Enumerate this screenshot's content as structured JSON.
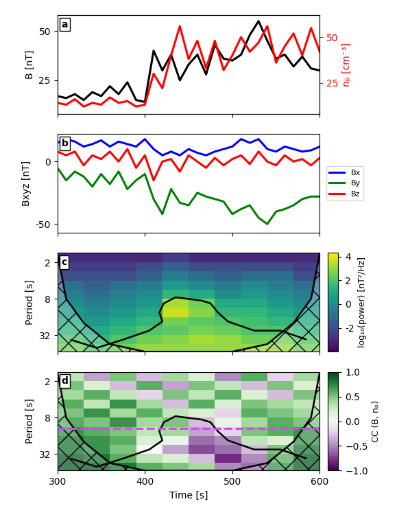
{
  "chart_data": [
    {
      "type": "line",
      "title": "a",
      "x": [
        300,
        310,
        320,
        330,
        340,
        350,
        360,
        370,
        380,
        390,
        400,
        410,
        420,
        430,
        440,
        450,
        460,
        470,
        480,
        490,
        500,
        510,
        520,
        530,
        540,
        550,
        560,
        570,
        580,
        590,
        600
      ],
      "series": [
        {
          "name": "B",
          "color": "#000000",
          "values": [
            17,
            16,
            18,
            15,
            19,
            17,
            22,
            18,
            24,
            15,
            14,
            40,
            30,
            38,
            25,
            33,
            38,
            28,
            43,
            36,
            35,
            38,
            48,
            55,
            45,
            36,
            38,
            32,
            37,
            31,
            30
          ]
        },
        {
          "name": "nₚ",
          "color": "#ff0000",
          "axis": "y2",
          "values": [
            14,
            13,
            16,
            12,
            14,
            13,
            17,
            14,
            15,
            12,
            13,
            30,
            22,
            40,
            56,
            38,
            48,
            33,
            48,
            32,
            40,
            50,
            42,
            47,
            56,
            36,
            45,
            52,
            40,
            55,
            42
          ]
        }
      ],
      "ylabel": "B [nT]",
      "y2label": "nₚ [cm⁻³]",
      "xlim": [
        300,
        600
      ],
      "xticks": [
        300,
        400,
        500,
        600
      ],
      "ylim": [
        8,
        58
      ],
      "yticks": [
        25,
        50
      ],
      "y2lim": [
        8,
        62
      ],
      "y2ticks": [
        25,
        50
      ],
      "tick_labels": "y"
    },
    {
      "type": "line",
      "title": "b",
      "x": [
        300,
        310,
        320,
        330,
        340,
        350,
        360,
        370,
        380,
        390,
        400,
        410,
        420,
        430,
        440,
        450,
        460,
        470,
        480,
        490,
        500,
        510,
        520,
        530,
        540,
        550,
        560,
        570,
        580,
        590,
        600
      ],
      "series": [
        {
          "name": "Bx",
          "color": "#0000ff",
          "values": [
            15,
            18,
            16,
            12,
            14,
            17,
            12,
            16,
            14,
            12,
            18,
            10,
            5,
            8,
            5,
            10,
            7,
            5,
            8,
            10,
            12,
            18,
            15,
            18,
            10,
            8,
            12,
            10,
            8,
            9,
            12
          ]
        },
        {
          "name": "By",
          "color": "#008000",
          "values": [
            -5,
            -15,
            -8,
            -12,
            -20,
            -10,
            -18,
            -8,
            -22,
            -15,
            -10,
            -30,
            -42,
            -22,
            -33,
            -35,
            -25,
            -28,
            -30,
            -32,
            -42,
            -38,
            -35,
            -45,
            -50,
            -40,
            -38,
            -35,
            -30,
            -28,
            -28
          ]
        },
        {
          "name": "Bz",
          "color": "#ff0000",
          "values": [
            8,
            5,
            8,
            -3,
            5,
            2,
            8,
            0,
            10,
            -5,
            5,
            -15,
            0,
            2,
            -8,
            5,
            0,
            -5,
            3,
            -3,
            2,
            5,
            -2,
            8,
            0,
            -3,
            5,
            0,
            2,
            -3,
            3
          ]
        }
      ],
      "ylabel": "Bxyz [nT]",
      "xlim": [
        300,
        600
      ],
      "xticks": [
        300,
        400,
        500,
        600
      ],
      "ylim": [
        -57,
        22
      ],
      "yticks": [
        -50,
        0
      ],
      "legend": "center left",
      "tick_labels": "y"
    },
    {
      "type": "heatmap",
      "title": "c",
      "color": "viridis",
      "log": "y",
      "x_edges": [
        300,
        330,
        360,
        390,
        420,
        450,
        480,
        510,
        540,
        570,
        600
      ],
      "y_edges": [
        1.4,
        2,
        2.8,
        4,
        5.7,
        8,
        11.3,
        16,
        22.6,
        32,
        45,
        60
      ],
      "cells": [
        [
          -3,
          -3,
          -3,
          -3,
          -2.5,
          -3,
          -3,
          -3,
          -3,
          -3
        ],
        [
          -2.5,
          -2.5,
          -2.5,
          -2,
          -1.5,
          -2,
          -2,
          -2,
          -2,
          -2.5
        ],
        [
          -2,
          -2,
          -2,
          -1.5,
          -0.5,
          -1,
          -1.5,
          -1,
          -1,
          -2
        ],
        [
          -1,
          -1.5,
          -1,
          -0.5,
          0.5,
          0,
          -0.5,
          0,
          -0.5,
          -1
        ],
        [
          -0.5,
          -1,
          -0.5,
          0,
          1.5,
          1,
          0,
          0.5,
          0,
          -0.5
        ],
        [
          0,
          -0.5,
          0,
          0.5,
          3.2,
          2.5,
          1,
          1,
          0.5,
          0
        ],
        [
          0.5,
          0,
          0.5,
          1,
          3.6,
          2.8,
          1.5,
          1.5,
          1,
          0.5
        ],
        [
          1,
          0.5,
          1,
          1.5,
          2.5,
          2.2,
          2,
          1.8,
          1.5,
          1
        ],
        [
          1.5,
          1,
          1.5,
          2,
          2.2,
          2.6,
          2.4,
          2,
          2,
          1.5
        ],
        [
          2,
          1.5,
          2,
          2.5,
          2.8,
          3.2,
          3,
          2.5,
          2.5,
          2
        ],
        [
          2.5,
          2,
          2.5,
          3,
          3,
          3,
          3,
          3,
          3,
          2.5
        ]
      ],
      "contour_level": 2,
      "coi": {
        "x": [
          300,
          310,
          330,
          360,
          400,
          450,
          500,
          540,
          570,
          590,
          600
        ],
        "period": [
          1.4,
          8,
          20,
          45,
          60,
          60,
          60,
          45,
          20,
          8,
          1.4
        ]
      },
      "ylabel": "Period [s]",
      "xlim": [
        300,
        600
      ],
      "xticks": [
        300,
        400,
        500,
        600
      ],
      "ylim": [
        60,
        1.4
      ],
      "yticks": [
        2,
        8,
        32
      ],
      "colorbar_range": [
        -4,
        4.3
      ],
      "colorbar_ticks": [
        -2,
        0,
        2,
        4
      ],
      "colorbar_label": "log₁₀(power) [nT²/Hz]",
      "tick_labels": "y"
    },
    {
      "type": "heatmap",
      "title": "d",
      "color": "PRGn",
      "log": "y",
      "x_edges": [
        300,
        330,
        360,
        390,
        420,
        450,
        480,
        510,
        540,
        570,
        600
      ],
      "y_edges": [
        1.4,
        2,
        2.8,
        4,
        5.7,
        8,
        11.3,
        16,
        22.6,
        32,
        45,
        60
      ],
      "cells": [
        [
          0.3,
          -0.4,
          0.5,
          -0.3,
          0.4,
          0.2,
          -0.5,
          0.6,
          -0.2,
          0.4
        ],
        [
          0.5,
          0.2,
          -0.3,
          0.6,
          -0.4,
          0.5,
          0.3,
          -0.3,
          0.5,
          0.2
        ],
        [
          0.4,
          0.6,
          0.3,
          -0.2,
          0.5,
          0.3,
          0.6,
          0.2,
          -0.3,
          0.5
        ],
        [
          0.6,
          0.3,
          0.7,
          0.4,
          -0.3,
          0.6,
          0.2,
          0.5,
          0.4,
          0.3
        ],
        [
          0.5,
          0.7,
          0.4,
          0.6,
          0.3,
          0.2,
          -0.2,
          0.6,
          0.5,
          0.4
        ],
        [
          0.6,
          0.5,
          0.7,
          0.4,
          0.5,
          -0.3,
          0.1,
          0.4,
          0.6,
          0.5
        ],
        [
          0.7,
          0.6,
          0.5,
          0.3,
          0.4,
          -0.4,
          -0.2,
          0.5,
          0.6,
          0.7
        ],
        [
          0.8,
          0.7,
          0.6,
          0.2,
          0.1,
          -0.6,
          -0.5,
          0.3,
          0.2,
          0.7
        ],
        [
          0.8,
          0.7,
          0.5,
          0.0,
          -0.4,
          -0.7,
          -0.6,
          -0.3,
          0.5,
          0.8
        ],
        [
          0.9,
          0.8,
          0.6,
          0.3,
          0.2,
          -0.3,
          -0.8,
          -0.5,
          0.6,
          0.9
        ],
        [
          0.9,
          0.9,
          0.8,
          0.6,
          0.5,
          0.4,
          -0.5,
          -0.6,
          0.7,
          0.9
        ]
      ],
      "contour_level": 2,
      "coi": {
        "x": [
          300,
          310,
          330,
          360,
          400,
          450,
          500,
          540,
          570,
          590,
          600
        ],
        "period": [
          1.4,
          8,
          20,
          45,
          60,
          60,
          60,
          45,
          20,
          8,
          1.4
        ]
      },
      "reference_line": {
        "value": 12,
        "color": "#e040fb",
        "line_style": "dashed"
      },
      "xlabel": "Time [s]",
      "ylabel": "Period [s]",
      "xlim": [
        300,
        600
      ],
      "xticks": [
        300,
        400,
        500,
        600
      ],
      "ylim": [
        60,
        1.4
      ],
      "yticks": [
        2,
        8,
        32
      ],
      "colorbar_range": [
        -1.0,
        1.0
      ],
      "colorbar_ticks": [
        {
          "value": -1.0,
          "label": "−1.0"
        },
        {
          "value": -0.5,
          "label": "−0.5"
        },
        {
          "value": 0.0,
          "label": "0.0"
        },
        {
          "value": 0.5,
          "label": "0.5"
        },
        {
          "value": 1.0,
          "label": "1.0"
        }
      ],
      "colorbar_label": "CC (B, nₚ)"
    }
  ]
}
